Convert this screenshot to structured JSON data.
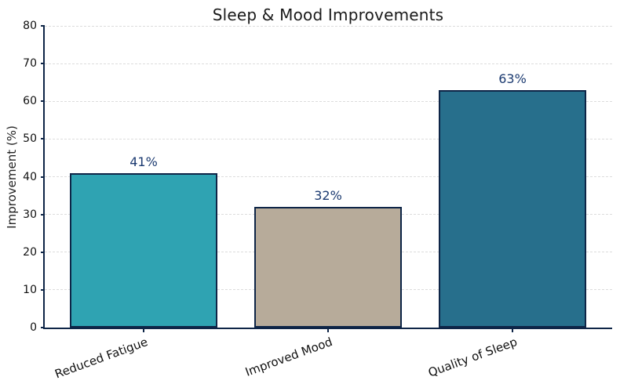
{
  "chart_data": {
    "type": "bar",
    "title": "Sleep & Mood Improvements",
    "ylabel": "Improvement (%)",
    "xlabel": "",
    "categories": [
      "Reduced Fatigue",
      "Improved Mood",
      "Quality of Sleep"
    ],
    "values": [
      41,
      32,
      63
    ],
    "bar_labels": [
      "41%",
      "32%",
      "63%"
    ],
    "ylim": [
      0,
      80
    ],
    "yticks": [
      0,
      10,
      20,
      30,
      40,
      50,
      60,
      70,
      80
    ],
    "xtick_rotation_deg": 20,
    "grid": {
      "axis": "y",
      "style": "dashed",
      "color": "#dcdcdc"
    },
    "legend_position": "none",
    "colors": {
      "bars": [
        "#2fa3b2",
        "#b7ab9a",
        "#276f8c"
      ],
      "bar_edge": "#0e2547",
      "bar_label_text": "#1b3a70",
      "axis_spine": "#0e2547",
      "tick_label_text": "#111111",
      "title_text": "#1a1a1a",
      "background": "#ffffff"
    }
  }
}
